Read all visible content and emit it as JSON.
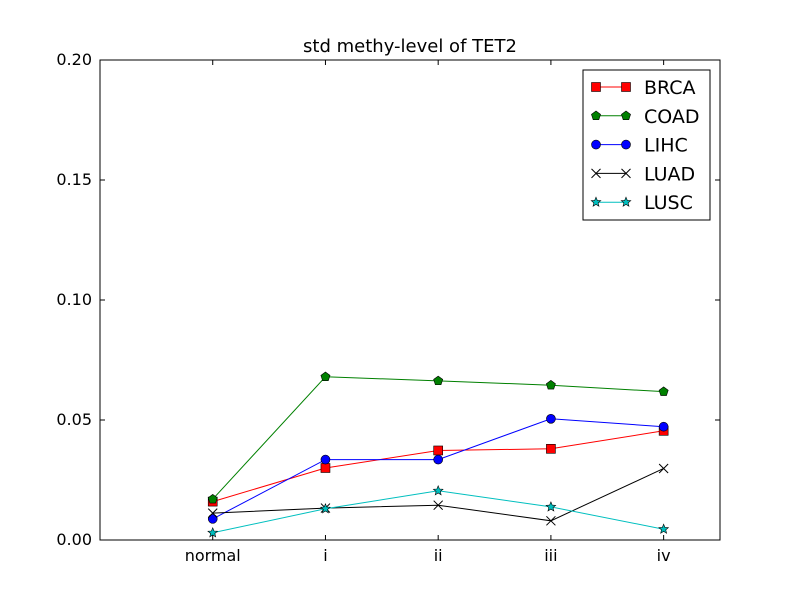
{
  "chart_data": {
    "type": "line",
    "title": "std methy-level of TET2",
    "xlabel": "",
    "ylabel": "",
    "categories": [
      "normal",
      "i",
      "ii",
      "iii",
      "iv"
    ],
    "xlim": [
      -1,
      4.5
    ],
    "ylim": [
      0,
      0.2
    ],
    "yticks": [
      "0.00",
      "0.05",
      "0.10",
      "0.15",
      "0.20"
    ],
    "ytick_values": [
      0,
      0.05,
      0.1,
      0.15,
      0.2
    ],
    "grid": false,
    "legend_position": "top-right",
    "series": [
      {
        "name": "BRCA",
        "color": "#ff0000",
        "marker": "square",
        "values": [
          0.016,
          0.03,
          0.0373,
          0.038,
          0.0455
        ]
      },
      {
        "name": "COAD",
        "color": "#008000",
        "marker": "pentagon",
        "values": [
          0.017,
          0.068,
          0.0663,
          0.0645,
          0.0618
        ]
      },
      {
        "name": "LIHC",
        "color": "#0000ff",
        "marker": "circle",
        "values": [
          0.0088,
          0.0335,
          0.0335,
          0.0505,
          0.0472
        ]
      },
      {
        "name": "LUAD",
        "color": "#000000",
        "marker": "x",
        "values": [
          0.0112,
          0.0133,
          0.0145,
          0.008,
          0.0298
        ]
      },
      {
        "name": "LUSC",
        "color": "#00bfbf",
        "marker": "star",
        "values": [
          0.003,
          0.013,
          0.0205,
          0.0138,
          0.0045
        ]
      }
    ]
  }
}
